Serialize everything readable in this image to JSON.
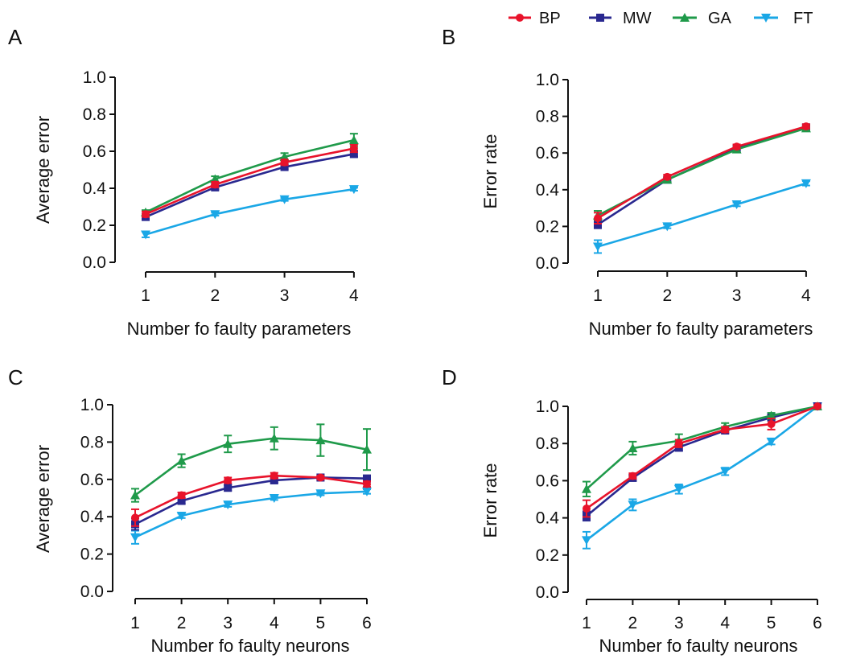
{
  "legend": [
    {
      "name": "BP",
      "color": "#e8132b",
      "marker": "circle"
    },
    {
      "name": "MW",
      "color": "#29288f",
      "marker": "square"
    },
    {
      "name": "GA",
      "color": "#1f9a4a",
      "marker": "triangle-up"
    },
    {
      "name": "FT",
      "color": "#1aa7e6",
      "marker": "triangle-down"
    }
  ],
  "chart_data": [
    {
      "panel": "A",
      "type": "line",
      "xlabel": "Number fo faulty parameters",
      "ylabel": "Average error",
      "categories": [
        "1",
        "2",
        "3",
        "4"
      ],
      "x": [
        1,
        2,
        3,
        4
      ],
      "ylim": [
        0,
        1
      ],
      "yticks": [
        "0.0",
        "0.2",
        "0.4",
        "0.6",
        "0.8",
        "1.0"
      ],
      "grid": false,
      "legend_placement": "top-right",
      "series": [
        {
          "name": "BP",
          "values": [
            0.26,
            0.42,
            0.54,
            0.615
          ],
          "errors": [
            0.015,
            0.015,
            0.015,
            0.02
          ]
        },
        {
          "name": "MW",
          "values": [
            0.245,
            0.405,
            0.515,
            0.585
          ],
          "errors": [
            0.012,
            0.012,
            0.012,
            0.015
          ]
        },
        {
          "name": "GA",
          "values": [
            0.27,
            0.45,
            0.57,
            0.66
          ],
          "errors": [
            0.012,
            0.015,
            0.02,
            0.035
          ]
        },
        {
          "name": "FT",
          "values": [
            0.15,
            0.26,
            0.34,
            0.395
          ],
          "errors": [
            0.015,
            0.008,
            0.008,
            0.008
          ]
        }
      ]
    },
    {
      "panel": "B",
      "type": "line",
      "xlabel": "Number fo faulty parameters",
      "ylabel": "Error rate",
      "categories": [
        "1",
        "2",
        "3",
        "4"
      ],
      "x": [
        1,
        2,
        3,
        4
      ],
      "ylim": [
        0,
        1
      ],
      "yticks": [
        "0.0",
        "0.2",
        "0.4",
        "0.6",
        "0.8",
        "1.0"
      ],
      "grid": false,
      "series": [
        {
          "name": "BP",
          "values": [
            0.245,
            0.47,
            0.635,
            0.745
          ],
          "errors": [
            0.03,
            0.012,
            0.012,
            0.012
          ]
        },
        {
          "name": "MW",
          "values": [
            0.21,
            0.455,
            0.625,
            0.74
          ],
          "errors": [
            0.02,
            0.012,
            0.012,
            0.012
          ]
        },
        {
          "name": "GA",
          "values": [
            0.26,
            0.455,
            0.62,
            0.735
          ],
          "errors": [
            0.025,
            0.012,
            0.015,
            0.012
          ]
        },
        {
          "name": "FT",
          "values": [
            0.09,
            0.2,
            0.32,
            0.435
          ],
          "errors": [
            0.035,
            0.01,
            0.01,
            0.012
          ]
        }
      ]
    },
    {
      "panel": "C",
      "type": "line",
      "xlabel": "Number fo faulty neurons",
      "ylabel": "Average error",
      "categories": [
        "1",
        "2",
        "3",
        "4",
        "5",
        "6"
      ],
      "x": [
        1,
        2,
        3,
        4,
        5,
        6
      ],
      "ylim": [
        0,
        1
      ],
      "yticks": [
        "0.0",
        "0.2",
        "0.4",
        "0.6",
        "0.8",
        "1.0"
      ],
      "grid": false,
      "series": [
        {
          "name": "BP",
          "values": [
            0.395,
            0.515,
            0.595,
            0.62,
            0.61,
            0.575
          ],
          "errors": [
            0.045,
            0.015,
            0.015,
            0.015,
            0.01,
            0.015
          ]
        },
        {
          "name": "MW",
          "values": [
            0.36,
            0.485,
            0.555,
            0.595,
            0.61,
            0.605
          ],
          "errors": [
            0.03,
            0.015,
            0.015,
            0.012,
            0.01,
            0.012
          ]
        },
        {
          "name": "GA",
          "values": [
            0.515,
            0.7,
            0.79,
            0.82,
            0.81,
            0.76
          ],
          "errors": [
            0.035,
            0.035,
            0.045,
            0.06,
            0.085,
            0.11
          ]
        },
        {
          "name": "FT",
          "values": [
            0.29,
            0.405,
            0.465,
            0.5,
            0.525,
            0.535
          ],
          "errors": [
            0.035,
            0.012,
            0.012,
            0.01,
            0.01,
            0.012
          ]
        }
      ]
    },
    {
      "panel": "D",
      "type": "line",
      "xlabel": "Number fo faulty neurons",
      "ylabel": "Error rate",
      "categories": [
        "1",
        "2",
        "3",
        "4",
        "5",
        "6"
      ],
      "x": [
        1,
        2,
        3,
        4,
        5,
        6
      ],
      "ylim": [
        0,
        1
      ],
      "yticks": [
        "0.0",
        "0.2",
        "0.4",
        "0.6",
        "0.8",
        "1.0"
      ],
      "grid": false,
      "series": [
        {
          "name": "BP",
          "values": [
            0.45,
            0.625,
            0.8,
            0.875,
            0.905,
            1.0
          ],
          "errors": [
            0.045,
            0.015,
            0.02,
            0.015,
            0.03,
            0.005
          ]
        },
        {
          "name": "MW",
          "values": [
            0.41,
            0.615,
            0.78,
            0.87,
            0.94,
            1.0
          ],
          "errors": [
            0.025,
            0.015,
            0.02,
            0.015,
            0.015,
            0.005
          ]
        },
        {
          "name": "GA",
          "values": [
            0.555,
            0.775,
            0.815,
            0.89,
            0.95,
            1.0
          ],
          "errors": [
            0.04,
            0.035,
            0.035,
            0.02,
            0.015,
            0.005
          ]
        },
        {
          "name": "FT",
          "values": [
            0.28,
            0.47,
            0.555,
            0.65,
            0.81,
            1.0
          ],
          "errors": [
            0.045,
            0.03,
            0.025,
            0.02,
            0.015,
            0.005
          ]
        }
      ]
    }
  ]
}
